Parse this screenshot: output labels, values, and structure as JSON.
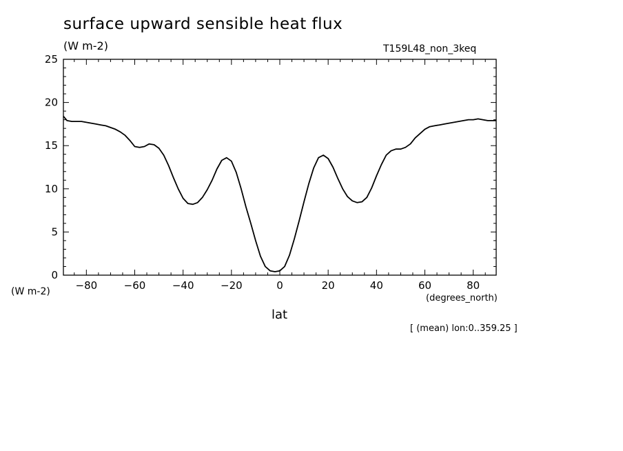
{
  "chart_data": {
    "type": "line",
    "title": "surface upward sensible heat flux",
    "units": "(W m-2)",
    "run_label": "T159L48_non_3keq",
    "xlabel": "lat",
    "x_units": "(degrees_north)",
    "y_units": "(W m-2)",
    "note": "[ (mean) lon:0..359.25 ]",
    "xlim": [
      -89.5,
      89.5
    ],
    "ylim": [
      0,
      25
    ],
    "x_ticks": [
      -80,
      -60,
      -40,
      -20,
      0,
      20,
      40,
      60,
      80
    ],
    "y_ticks": [
      0,
      5,
      10,
      15,
      20,
      25
    ],
    "grid": false,
    "series": [
      {
        "name": "",
        "color": "#000000",
        "x": [
          -89.5,
          -88,
          -86,
          -84,
          -82,
          -80,
          -78,
          -76,
          -74,
          -72,
          -70,
          -68,
          -66,
          -64,
          -62,
          -60,
          -58,
          -56,
          -54,
          -52,
          -50,
          -48,
          -46,
          -44,
          -42,
          -40,
          -38,
          -36,
          -34,
          -32,
          -30,
          -28,
          -26,
          -24,
          -22,
          -20,
          -18,
          -16,
          -14,
          -12,
          -10,
          -8,
          -6,
          -4,
          -2,
          0,
          2,
          4,
          6,
          8,
          10,
          12,
          14,
          16,
          18,
          20,
          22,
          24,
          26,
          28,
          30,
          32,
          34,
          36,
          38,
          40,
          42,
          44,
          46,
          48,
          50,
          52,
          54,
          56,
          58,
          60,
          62,
          64,
          66,
          68,
          70,
          72,
          74,
          76,
          78,
          80,
          82,
          84,
          86,
          88,
          89.5
        ],
        "y": [
          18.4,
          17.9,
          17.8,
          17.8,
          17.8,
          17.7,
          17.6,
          17.5,
          17.4,
          17.3,
          17.1,
          16.9,
          16.6,
          16.2,
          15.6,
          14.9,
          14.8,
          14.9,
          15.2,
          15.1,
          14.7,
          13.9,
          12.7,
          11.3,
          10.0,
          8.9,
          8.3,
          8.2,
          8.4,
          9.0,
          9.9,
          11.0,
          12.3,
          13.3,
          13.6,
          13.2,
          11.9,
          10.0,
          7.9,
          6.0,
          4.0,
          2.2,
          1.0,
          0.5,
          0.4,
          0.5,
          1.0,
          2.3,
          4.2,
          6.3,
          8.5,
          10.6,
          12.4,
          13.6,
          13.9,
          13.5,
          12.5,
          11.2,
          10.0,
          9.1,
          8.6,
          8.4,
          8.5,
          9.0,
          10.1,
          11.5,
          12.8,
          13.9,
          14.4,
          14.6,
          14.6,
          14.8,
          15.2,
          15.9,
          16.4,
          16.9,
          17.2,
          17.3,
          17.4,
          17.5,
          17.6,
          17.7,
          17.8,
          17.9,
          18.0,
          18.0,
          18.1,
          18.0,
          17.9,
          17.9,
          17.9
        ]
      }
    ]
  }
}
